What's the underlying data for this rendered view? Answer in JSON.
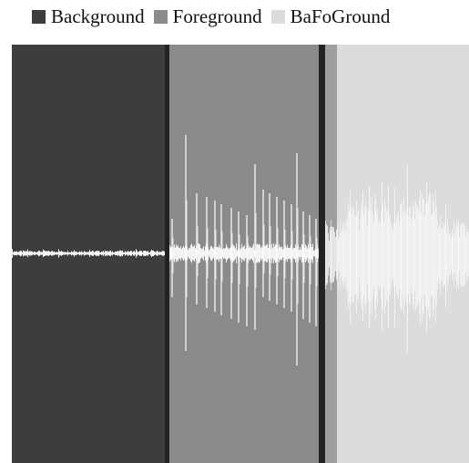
{
  "colors": {
    "background_segment": "#3d3d3d",
    "foreground_segment": "#8b8b8b",
    "bafoground_segment": "#dcdcdc",
    "divider": "#222222",
    "waveform": "#ffffff",
    "waveform_soft": "#f4f4f4"
  },
  "legend": {
    "items": [
      {
        "label": "Background",
        "color": "#3d3d3d",
        "swatch_icon": "square-swatch"
      },
      {
        "label": "Foreground",
        "color": "#8b8b8b",
        "swatch_icon": "square-swatch"
      },
      {
        "label": "BaFoGround",
        "color": "#dcdcdc",
        "swatch_icon": "square-swatch"
      }
    ]
  },
  "chart_data": {
    "type": "area",
    "title": "",
    "xlabel": "",
    "ylabel": "",
    "axes_visible": false,
    "grid": false,
    "legend_position": "top",
    "description_of_content": "Audio waveform split into three consecutive segments shown on colored backgrounds.",
    "series": [
      {
        "name": "Background",
        "segment_order": 1,
        "relative_duration": 0.34,
        "amplitude_level": "very low, nearly flat"
      },
      {
        "name": "Foreground",
        "segment_order": 2,
        "relative_duration": 0.34,
        "amplitude_level": "low baseline with repeated tall transient spikes",
        "spike_count": 20
      },
      {
        "name": "BaFoGround",
        "segment_order": 3,
        "relative_duration": 0.32,
        "amplitude_level": "moderate dense noise with denser middle burst"
      }
    ]
  }
}
